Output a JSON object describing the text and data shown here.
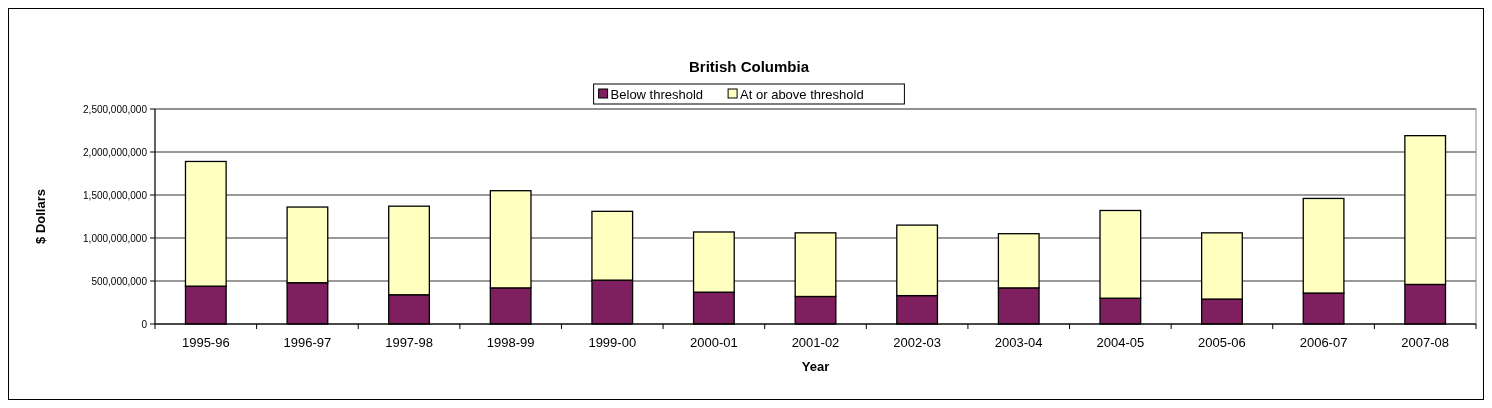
{
  "chart_data": {
    "type": "bar",
    "stacked": true,
    "title": "British Columbia",
    "xlabel": "Year",
    "ylabel": "$ Dollars",
    "categories": [
      "1995-96",
      "1996-97",
      "1997-98",
      "1998-99",
      "1999-00",
      "2000-01",
      "2001-02",
      "2002-03",
      "2003-04",
      "2004-05",
      "2005-06",
      "2006-07",
      "2007-08"
    ],
    "series": [
      {
        "name": "Below threshold",
        "color": "#7f1f5f",
        "values": [
          440000000,
          480000000,
          340000000,
          420000000,
          510000000,
          370000000,
          320000000,
          330000000,
          420000000,
          300000000,
          290000000,
          360000000,
          460000000
        ]
      },
      {
        "name": "At or above threshold",
        "color": "#ffffc0",
        "values": [
          1450000000,
          880000000,
          1030000000,
          1130000000,
          800000000,
          700000000,
          740000000,
          820000000,
          630000000,
          1020000000,
          770000000,
          1100000000,
          1730000000
        ]
      }
    ],
    "ylim": [
      0,
      2500000000
    ],
    "yticks": [
      0,
      {
        "value": 500000000,
        "label": "500,000,000"
      },
      {
        "value": 1000000000,
        "label": "1,000,000,000"
      },
      {
        "value": 1500000000,
        "label": "1,500,000,000"
      },
      {
        "value": 2000000000,
        "label": "2,000,000,000"
      },
      {
        "value": 2500000000,
        "label": "2,500,000,000"
      }
    ],
    "grid": "y",
    "legend": "top"
  }
}
